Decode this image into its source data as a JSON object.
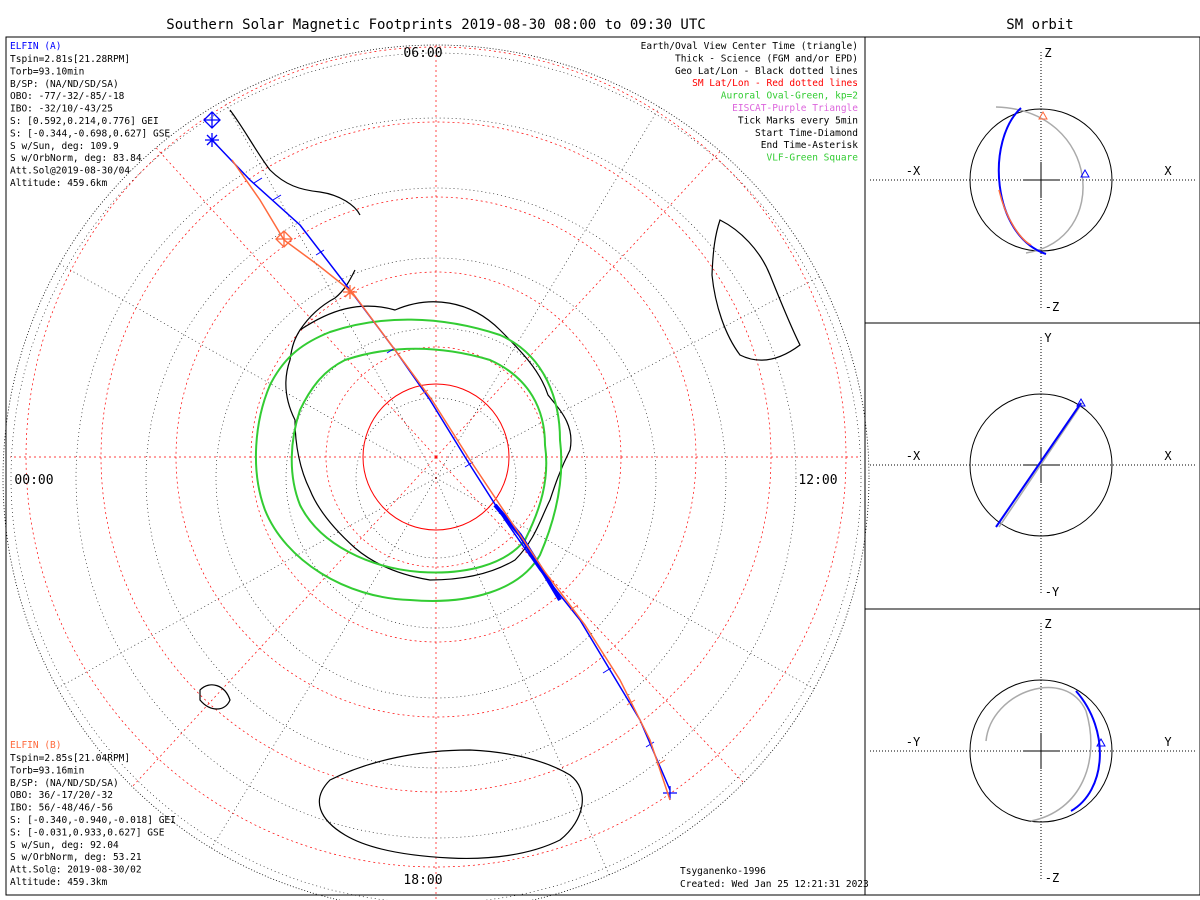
{
  "title": "Southern Solar Magnetic Footprints 2019-08-30 08:00 to 09:30 UTC",
  "right_title": "SM orbit",
  "time_labels": {
    "top": "06:00",
    "left": "00:00",
    "right": "12:00",
    "bottom": "18:00"
  },
  "elfin_a": {
    "name": "ELFIN (A)",
    "color": "#0000ff",
    "lines": [
      "Tspin=2.81s[21.28RPM]",
      "Torb=93.10min",
      "B/SP: (NA/ND/SD/SA)",
      "OBO: -77/-32/-85/-18",
      "IBO: -32/10/-43/25",
      "S: [0.592,0.214,0.776] GEI",
      "S: [-0.344,-0.698,0.627] GSE",
      "S w/Sun, deg: 109.9",
      "S w/OrbNorm, deg: 83.84",
      "Att.Sol@2019-08-30/04",
      "Altitude: 459.6km"
    ]
  },
  "elfin_b": {
    "name": "ELFIN (B)",
    "color": "#ff6a3d",
    "lines": [
      "Tspin=2.85s[21.04RPM]",
      "Torb=93.16min",
      "B/SP: (NA/ND/SD/SA)",
      "OBO: 36/-17/20/-32",
      "IBO: 56/-48/46/-56",
      "S: [-0.340,-0.940,-0.018] GEI",
      "S: [-0.031,0.933,0.627] GSE",
      "S w/Sun, deg: 92.04",
      "S w/OrbNorm, deg: 53.21",
      "Att.Sol@: 2019-08-30/02",
      "Altitude: 459.3km"
    ]
  },
  "legend": [
    {
      "text": "Earth/Oval View Center Time (triangle)",
      "color": "#000000"
    },
    {
      "text": "Thick - Science (FGM and/or EPD)",
      "color": "#000000"
    },
    {
      "text": "Geo Lat/Lon - Black dotted lines",
      "color": "#000000"
    },
    {
      "text": "SM Lat/Lon - Red dotted lines",
      "color": "#ff0000"
    },
    {
      "text": "Auroral Oval-Green, kp=2",
      "color": "#33cc33"
    },
    {
      "text": "EISCAT-Purple Triangle",
      "color": "#dd66dd"
    },
    {
      "text": "Tick Marks every 5min",
      "color": "#000000"
    },
    {
      "text": "Start Time-Diamond",
      "color": "#000000"
    },
    {
      "text": "End Time-Asterisk",
      "color": "#000000"
    },
    {
      "text": "VLF-Green Square",
      "color": "#33cc33"
    }
  ],
  "footer": {
    "model": "Tsyganenko-1996",
    "created": "Created: Wed Jan 25 12:21:31 2023"
  },
  "orbit_panels": [
    {
      "top": "Z",
      "bottom": "-Z",
      "left": "-X",
      "right": "X"
    },
    {
      "top": "Y",
      "bottom": "-Y",
      "left": "-X",
      "right": "X"
    },
    {
      "top": "Z",
      "bottom": "-Z",
      "left": "-Y",
      "right": "Y"
    }
  ],
  "colors": {
    "elfin_a": "#0000ff",
    "elfin_b": "#ff6a3d",
    "auroral_oval": "#33cc33",
    "sm_grid": "#ff0000",
    "geo_grid": "#000000",
    "orbit_other": "#aaaaaa"
  },
  "chart_data": {
    "type": "scatter",
    "title": "Southern Solar Magnetic Footprints 2019-08-30 08:00 to 09:30 UTC",
    "projection": "polar (south)",
    "local_time_labels": [
      "00:00",
      "06:00",
      "12:00",
      "18:00"
    ],
    "grid": true,
    "legend_position": "top-right",
    "series": [
      {
        "name": "ELFIN (A)",
        "color": "#0000ff"
      },
      {
        "name": "ELFIN (B)",
        "color": "#ff6a3d"
      }
    ]
  }
}
